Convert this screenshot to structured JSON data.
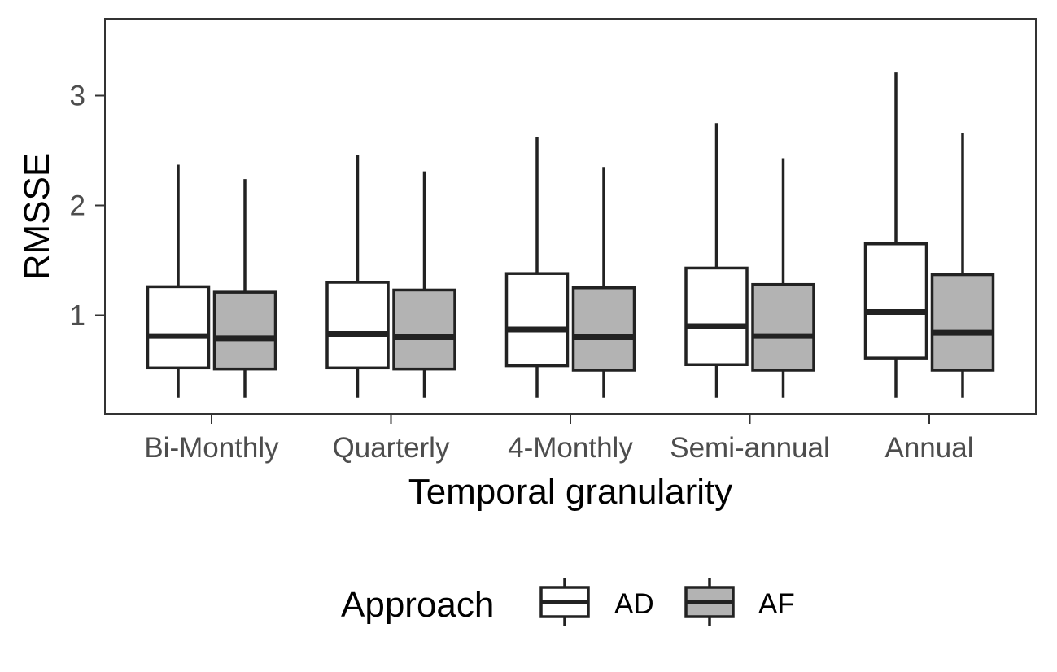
{
  "chart_data": {
    "type": "boxplot",
    "title": "",
    "xlabel": "Temporal granularity",
    "ylabel": "RMSSE",
    "categories": [
      "Bi-Monthly",
      "Quarterly",
      "4-Monthly",
      "Semi-annual",
      "Annual"
    ],
    "ylim": [
      0.1,
      3.7
    ],
    "yticks": [
      1,
      2,
      3
    ],
    "grid": false,
    "legend": {
      "title": "Approach",
      "position": "bottom"
    },
    "series": [
      {
        "name": "AD",
        "fill": "#ffffff",
        "boxes": [
          {
            "min": 0.25,
            "q1": 0.52,
            "median": 0.81,
            "q3": 1.26,
            "max": 2.37
          },
          {
            "min": 0.25,
            "q1": 0.52,
            "median": 0.83,
            "q3": 1.3,
            "max": 2.46
          },
          {
            "min": 0.25,
            "q1": 0.54,
            "median": 0.87,
            "q3": 1.38,
            "max": 2.62
          },
          {
            "min": 0.25,
            "q1": 0.55,
            "median": 0.9,
            "q3": 1.43,
            "max": 2.75
          },
          {
            "min": 0.25,
            "q1": 0.61,
            "median": 1.03,
            "q3": 1.65,
            "max": 3.21
          }
        ]
      },
      {
        "name": "AF",
        "fill": "#b3b3b3",
        "boxes": [
          {
            "min": 0.25,
            "q1": 0.51,
            "median": 0.79,
            "q3": 1.21,
            "max": 2.24
          },
          {
            "min": 0.25,
            "q1": 0.51,
            "median": 0.8,
            "q3": 1.23,
            "max": 2.31
          },
          {
            "min": 0.25,
            "q1": 0.5,
            "median": 0.8,
            "q3": 1.25,
            "max": 2.35
          },
          {
            "min": 0.25,
            "q1": 0.5,
            "median": 0.81,
            "q3": 1.28,
            "max": 2.43
          },
          {
            "min": 0.25,
            "q1": 0.5,
            "median": 0.84,
            "q3": 1.37,
            "max": 2.66
          }
        ]
      }
    ]
  }
}
